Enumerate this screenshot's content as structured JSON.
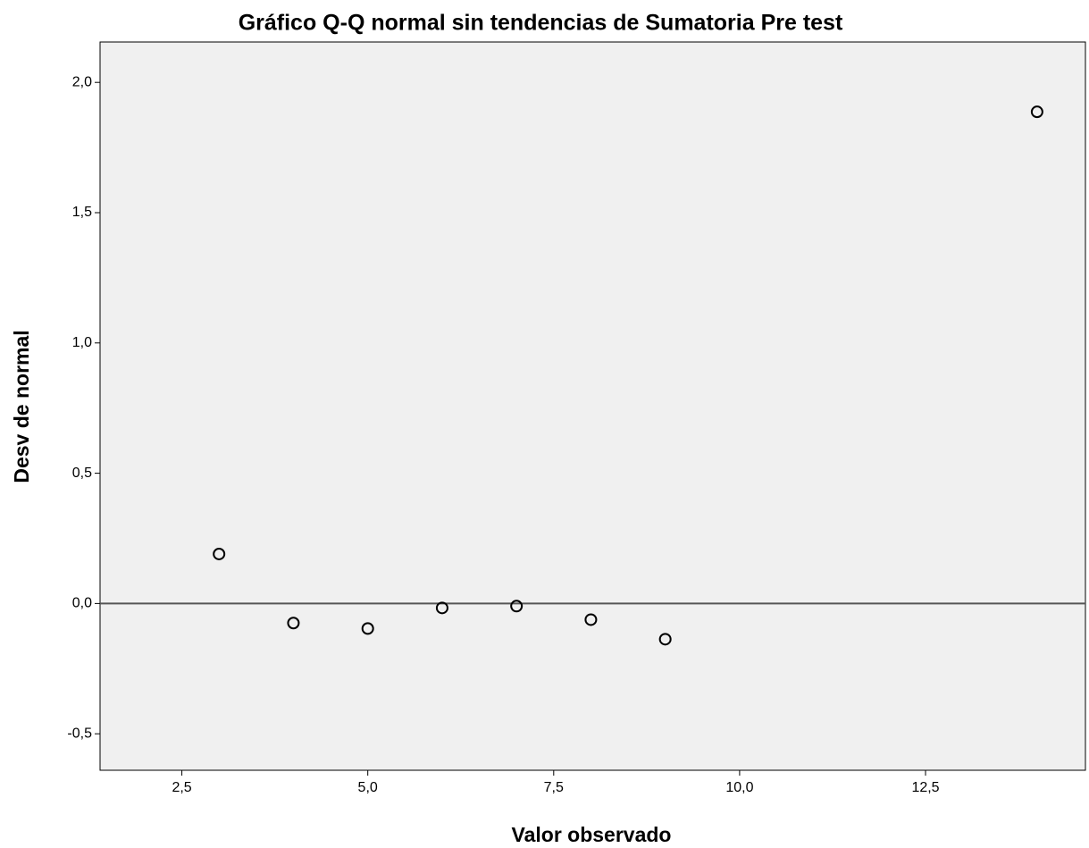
{
  "chart_data": {
    "type": "scatter",
    "title": "Gráfico Q-Q normal sin tendencias de Sumatoria Pre test",
    "x_label": "Valor observado",
    "y_label": "Desv de normal",
    "x": [
      3,
      4,
      5,
      6,
      7,
      8,
      9,
      14
    ],
    "values": [
      0.19,
      -0.075,
      -0.096,
      -0.017,
      -0.01,
      -0.062,
      -0.137,
      1.887
    ],
    "color": "#000000",
    "reference_line": 0,
    "reference_color": "#555555",
    "background": "#f0f0f0",
    "xlim": [
      1.4,
      14.65
    ],
    "ylim": [
      -0.64,
      2.155
    ],
    "xticks": [
      {
        "value": 2.5,
        "label": "2,5"
      },
      {
        "value": 5,
        "label": "5,0"
      },
      {
        "value": 7.5,
        "label": "7,5"
      },
      {
        "value": 10,
        "label": "10,0"
      },
      {
        "value": 12.5,
        "label": "12,5"
      }
    ],
    "yticks": [
      {
        "value": -0.5,
        "label": "-0,5"
      },
      {
        "value": 0,
        "label": "0,0"
      },
      {
        "value": 0.5,
        "label": "0,5"
      },
      {
        "value": 1,
        "label": "1,0"
      },
      {
        "value": 1.5,
        "label": "1,5"
      },
      {
        "value": 2,
        "label": "2,0"
      }
    ]
  }
}
